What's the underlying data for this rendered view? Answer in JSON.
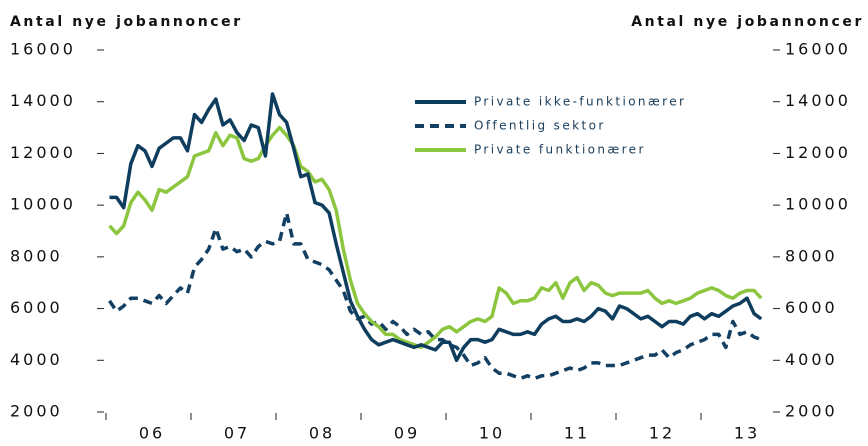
{
  "chart_data": {
    "type": "line",
    "y_label": "Antal nye jobannoncer",
    "y2_label": "Antal nye jobannoncer",
    "categories": [
      null,
      null,
      null,
      null,
      null,
      null,
      "06",
      null,
      null,
      null,
      null,
      null,
      null,
      null,
      null,
      null,
      null,
      null,
      "07",
      null,
      null,
      null,
      null,
      null,
      null,
      null,
      null,
      null,
      null,
      null,
      "08",
      null,
      null,
      null,
      null,
      null,
      null,
      null,
      null,
      null,
      null,
      null,
      "09",
      null,
      null,
      null,
      null,
      null,
      null,
      null,
      null,
      null,
      null,
      null,
      "10",
      null,
      null,
      null,
      null,
      null,
      null,
      null,
      null,
      null,
      null,
      null,
      "11",
      null,
      null,
      null,
      null,
      null,
      null,
      null,
      null,
      null,
      null,
      null,
      "12",
      null,
      null,
      null,
      null,
      null,
      null,
      null,
      null,
      null,
      null,
      null,
      "13",
      null,
      null
    ],
    "series": [
      {
        "name": "Private ikke-funktionærer",
        "color": "#0f3d5e",
        "dash": false,
        "values": [
          10300,
          10300,
          9900,
          11600,
          12300,
          12100,
          11500,
          12200,
          12400,
          12600,
          12600,
          12100,
          13500,
          13200,
          13700,
          14100,
          13100,
          13300,
          12800,
          12500,
          13100,
          13000,
          11900,
          14300,
          13500,
          13200,
          12200,
          11100,
          11200,
          10100,
          10000,
          9700,
          8500,
          7400,
          6300,
          5700,
          5200,
          4800,
          4600,
          4700,
          4800,
          4700,
          4600,
          4500,
          4600,
          4500,
          4400,
          4700,
          4700,
          4000,
          4500,
          4800,
          4800,
          4700,
          4800,
          5200,
          5100,
          5000,
          5000,
          5100,
          5000,
          5400,
          5600,
          5700,
          5500,
          5500,
          5600,
          5500,
          5700,
          6000,
          5900,
          5600,
          6100,
          6000,
          5800,
          5600,
          5700,
          5500,
          5300,
          5500,
          5500,
          5400,
          5700,
          5800,
          5600,
          5800,
          5700,
          5900,
          6100,
          6200,
          6400,
          5800,
          5600
        ]
      },
      {
        "name": "Offentlig sektor",
        "color": "#123f62",
        "dash": true,
        "values": [
          6300,
          5900,
          6100,
          6400,
          6400,
          6300,
          6200,
          6500,
          6200,
          6500,
          6800,
          6600,
          7600,
          7900,
          8300,
          9100,
          8300,
          8400,
          8200,
          8300,
          8000,
          8400,
          8600,
          8500,
          8600,
          9700,
          8500,
          8500,
          7900,
          7800,
          7700,
          7500,
          7100,
          6700,
          5900,
          5600,
          5700,
          5400,
          5500,
          5200,
          5500,
          5300,
          5000,
          5200,
          5000,
          5100,
          4800,
          4800,
          4600,
          4500,
          4200,
          3800,
          3900,
          4100,
          3700,
          3500,
          3500,
          3400,
          3300,
          3400,
          3300,
          3400,
          3400,
          3500,
          3600,
          3700,
          3600,
          3700,
          3900,
          3900,
          3800,
          3800,
          3800,
          3900,
          4000,
          4100,
          4200,
          4200,
          4400,
          4100,
          4300,
          4400,
          4600,
          4700,
          4800,
          5000,
          5000,
          4500,
          5500,
          5000,
          5100,
          4900,
          4800
        ]
      },
      {
        "name": "Private funktionærer",
        "color": "#8cc63e",
        "dash": false,
        "values": [
          9200,
          8900,
          9200,
          10100,
          10500,
          10200,
          9800,
          10600,
          10500,
          10700,
          10900,
          11100,
          11900,
          12000,
          12100,
          12800,
          12300,
          12700,
          12600,
          11800,
          11700,
          11800,
          12300,
          12700,
          13000,
          12700,
          12300,
          11500,
          11300,
          10900,
          11000,
          10600,
          9800,
          8300,
          7100,
          6200,
          5800,
          5500,
          5300,
          5000,
          5000,
          4800,
          4700,
          4600,
          4500,
          4700,
          4900,
          5200,
          5300,
          5100,
          5300,
          5500,
          5600,
          5500,
          5700,
          6800,
          6600,
          6200,
          6300,
          6300,
          6400,
          6800,
          6700,
          7000,
          6400,
          7000,
          7200,
          6700,
          7000,
          6900,
          6600,
          6500,
          6600,
          6600,
          6600,
          6600,
          6700,
          6400,
          6200,
          6300,
          6200,
          6300,
          6400,
          6600,
          6700,
          6800,
          6700,
          6500,
          6400,
          6600,
          6700,
          6700,
          6400
        ]
      }
    ],
    "ylim": [
      2000,
      16000
    ],
    "yticks": [
      2000,
      4000,
      6000,
      8000,
      10000,
      12000,
      14000,
      16000
    ],
    "y2lim": [
      2000,
      16000
    ],
    "y2ticks": [
      2000,
      4000,
      6000,
      8000,
      10000,
      12000,
      14000,
      16000
    ],
    "legend": "top-right"
  }
}
